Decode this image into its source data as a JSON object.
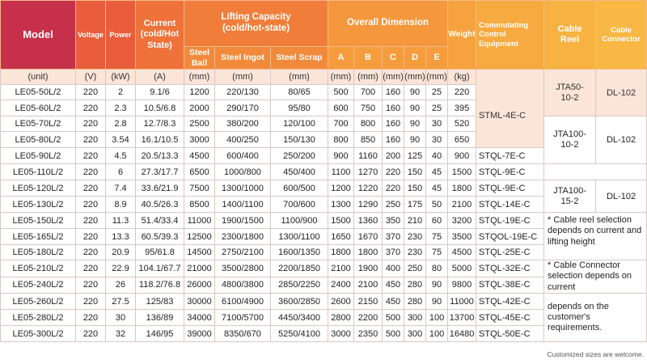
{
  "header": {
    "model": "Model",
    "voltage": "Voltage",
    "power": "Power",
    "current": "Current (cold/Hot State)",
    "lifting": "Lifting Capacity (cold/hot-state)",
    "lifting_sub": [
      "Steel Ball",
      "Steel Ingot",
      "Steel Scrap"
    ],
    "dimension": "Overall Dimension",
    "dimension_sub": [
      "A",
      "B",
      "C",
      "D",
      "E"
    ],
    "weight": "Weight",
    "commutating": "Commutating Control Equipment",
    "cable_reel": "Cable Reel",
    "cable_connector": "Cable Connector"
  },
  "units": [
    "(unit)",
    "(V)",
    "(kW)",
    "(A)",
    "(mm)",
    "(mm)",
    "(mm)",
    "(mm)",
    "(mm)",
    "(mm)",
    "(mm)",
    "(mm)",
    "(kg)"
  ],
  "rows": [
    [
      "LE05-50L/2",
      "220",
      "2",
      "9.1/6",
      "1200",
      "220/130",
      "80/65",
      "500",
      "700",
      "160",
      "90",
      "25",
      "220"
    ],
    [
      "LE05-60L/2",
      "220",
      "2.3",
      "10.5/6.8",
      "2000",
      "290/170",
      "95/80",
      "600",
      "750",
      "160",
      "90",
      "25",
      "395"
    ],
    [
      "LE05-70L/2",
      "220",
      "2.8",
      "12.7/8.3",
      "2500",
      "380/200",
      "120/100",
      "700",
      "800",
      "160",
      "90",
      "30",
      "520"
    ],
    [
      "LE05-80L/2",
      "220",
      "3.54",
      "16.1/10.5",
      "3000",
      "400/250",
      "150/130",
      "800",
      "850",
      "160",
      "90",
      "30",
      "650"
    ],
    [
      "LE05-90L/2",
      "220",
      "4.5",
      "20.5/13.3",
      "4500",
      "600/400",
      "250/200",
      "900",
      "1160",
      "200",
      "125",
      "40",
      "900"
    ],
    [
      "LE05-110L/2",
      "220",
      "6",
      "27.3/17.7",
      "6500",
      "1000/800",
      "450/400",
      "1100",
      "1270",
      "220",
      "150",
      "45",
      "1500"
    ],
    [
      "LE05-120L/2",
      "220",
      "7.4",
      "33.6/21.9",
      "7500",
      "1300/1000",
      "600/500",
      "1200",
      "1220",
      "220",
      "150",
      "45",
      "1800"
    ],
    [
      "LE05-130L/2",
      "220",
      "8.9",
      "40.5/26.3",
      "8500",
      "1400/1100",
      "700/600",
      "1300",
      "1290",
      "250",
      "175",
      "50",
      "2100"
    ],
    [
      "LE05-150L/2",
      "220",
      "11.3",
      "51.4/33.4",
      "11000",
      "1900/1500",
      "1100/900",
      "1500",
      "1360",
      "350",
      "210",
      "60",
      "3200"
    ],
    [
      "LE05-165L/2",
      "220",
      "13.3",
      "60.5/39.3",
      "12500",
      "2300/1800",
      "1300/1100",
      "1650",
      "1670",
      "370",
      "230",
      "75",
      "3500"
    ],
    [
      "LE05-180L/2",
      "220",
      "20.9",
      "95/61.8",
      "14500",
      "2750/2100",
      "1600/1350",
      "1800",
      "1800",
      "370",
      "230",
      "75",
      "4500"
    ],
    [
      "LE05-210L/2",
      "220",
      "22.9",
      "104.1/67.7",
      "21000",
      "3500/2800",
      "2200/1850",
      "2100",
      "1900",
      "400",
      "250",
      "80",
      "5000"
    ],
    [
      "LE05-240L/2",
      "220",
      "26",
      "118.2/76.8",
      "26000",
      "4800/3800",
      "2850/2250",
      "2400",
      "2100",
      "450",
      "280",
      "90",
      "9800"
    ],
    [
      "LE05-260L/2",
      "220",
      "27.5",
      "125/83",
      "30000",
      "6100/4900",
      "3600/2850",
      "2600",
      "2150",
      "450",
      "280",
      "90",
      "11000"
    ],
    [
      "LE05-280L/2",
      "220",
      "30",
      "136/89",
      "34000",
      "7100/5700",
      "4450/3400",
      "2800",
      "2200",
      "500",
      "300",
      "100",
      "13700"
    ],
    [
      "LE05-300L/2",
      "220",
      "32",
      "146/95",
      "39000",
      "8350/670",
      "5250/4100",
      "3000",
      "2350",
      "500",
      "300",
      "100",
      "16480"
    ]
  ],
  "commutating": {
    "group1": "STML-4E-C",
    "r90": "STQL-7E-C",
    "r110": "STQL-9E-C",
    "r120": "STQL-9E-C",
    "r130": "STQL-14E-C",
    "r150": "STQL-19E-C",
    "r165": "STQOL-19E-C",
    "r180": "STQL-25E-C",
    "r210": "STQL-32E-C",
    "r240": "STQL-38E-C",
    "r260": "STQL-42E-C",
    "r280": "STQL-45E-C",
    "r300": "STQL-50E-C"
  },
  "reels": {
    "g1_reel": "JTA50-10-2",
    "g1_conn": "DL-102",
    "g2_reel": "JTA100-10-2",
    "g2_conn": "DL-102",
    "g3_reel": "JTA100-15-2",
    "g3_conn": "DL-102"
  },
  "notes": {
    "note1": "* Cable reel selection depends on current and lifting height",
    "note2": "* Cable Connector selection depends on current",
    "note3": "depends on the customer's requirements."
  },
  "footnote": "Customized sizes are welcome."
}
